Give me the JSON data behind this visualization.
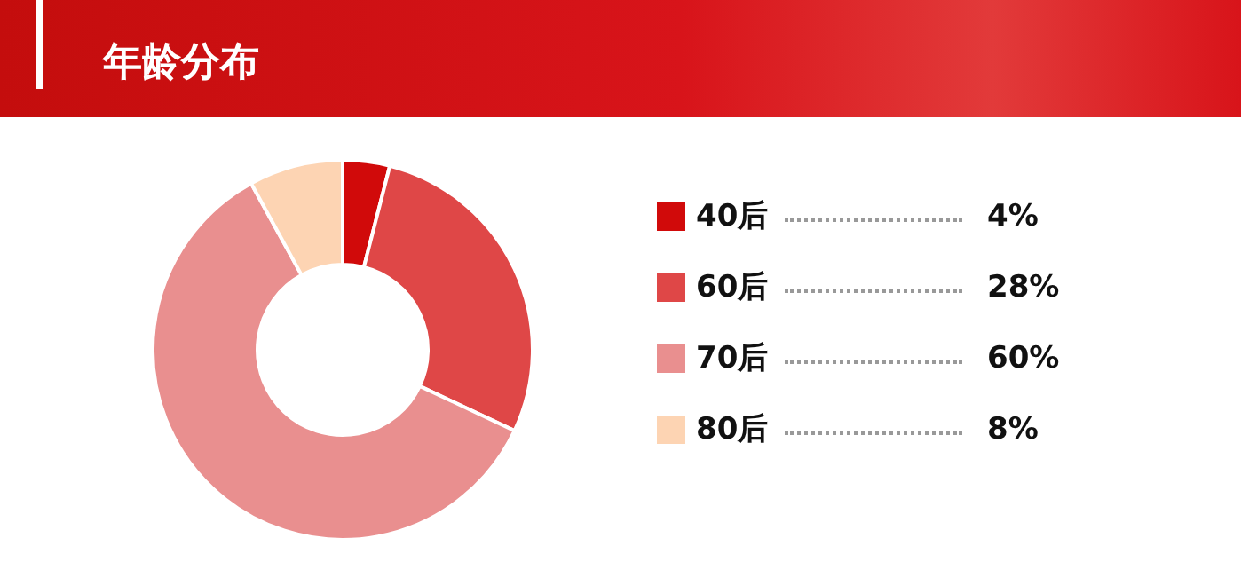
{
  "chart_data": {
    "type": "donut",
    "title": "年龄分布",
    "categories": [
      "40后",
      "60后",
      "70后",
      "80后"
    ],
    "values": [
      4,
      28,
      60,
      8
    ],
    "colors": [
      "#d10a0a",
      "#df4747",
      "#e98f8f",
      "#fdd4b3"
    ],
    "value_labels": [
      "4%",
      "28%",
      "60%",
      "8%"
    ],
    "legend": "right"
  }
}
